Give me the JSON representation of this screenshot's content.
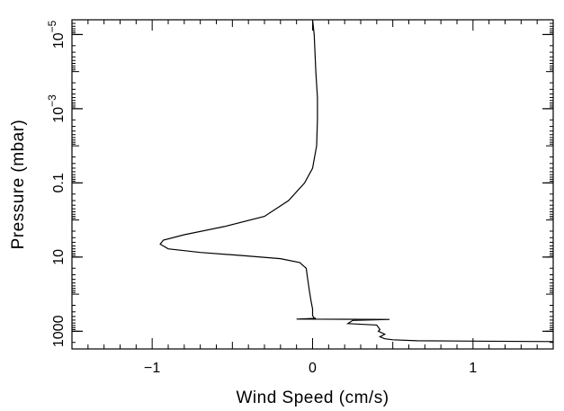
{
  "chart_data": {
    "type": "line",
    "title": "",
    "xlabel": "Wind Speed (cm/s)",
    "ylabel": "Pressure (mbar)",
    "xlim": [
      -1.5,
      1.5
    ],
    "ylim": [
      3000,
      4e-06
    ],
    "yscale": "log",
    "y_inverted": true,
    "grid": false,
    "legend": "none",
    "line_color": "#000000",
    "x_ticks": [
      {
        "value": -1,
        "label": "−1"
      },
      {
        "value": 0,
        "label": "0"
      },
      {
        "value": 1,
        "label": "1"
      }
    ],
    "y_ticks": [
      {
        "value": 1000,
        "label": "1000"
      },
      {
        "value": 10,
        "label": "10"
      },
      {
        "value": 0.1,
        "label": "0.1"
      },
      {
        "value": 0.001,
        "label": "10",
        "exponent": "−3"
      },
      {
        "value": 1e-05,
        "label": "10",
        "exponent": "−5"
      }
    ],
    "series": [
      {
        "x": [
          0.0,
          0.01,
          0.02,
          0.03,
          0.03,
          0.025,
          0.0,
          -0.05,
          -0.15,
          -0.3,
          -0.55,
          -0.8,
          -0.93,
          -0.95,
          -0.9,
          -0.7,
          -0.45,
          -0.2,
          -0.08,
          -0.04,
          -0.03,
          -0.02,
          -0.01,
          0.0,
          0.0,
          0.01,
          0.02,
          -0.1,
          0.48,
          0.25,
          0.22,
          0.4,
          0.42,
          0.41,
          0.45,
          0.42,
          0.45,
          0.5,
          0.65,
          1.0,
          1.5
        ],
        "y": [
          4e-06,
          1e-05,
          0.0001,
          0.0005,
          0.002,
          0.01,
          0.04,
          0.1,
          0.3,
          0.8,
          1.5,
          2.5,
          3.5,
          4.5,
          6,
          7.5,
          9,
          11,
          14,
          20,
          40,
          80,
          150,
          250,
          380,
          440,
          450,
          470,
          480,
          510,
          620,
          680,
          900,
          1000,
          1200,
          1400,
          1600,
          1700,
          1800,
          1850,
          1900
        ]
      }
    ]
  }
}
